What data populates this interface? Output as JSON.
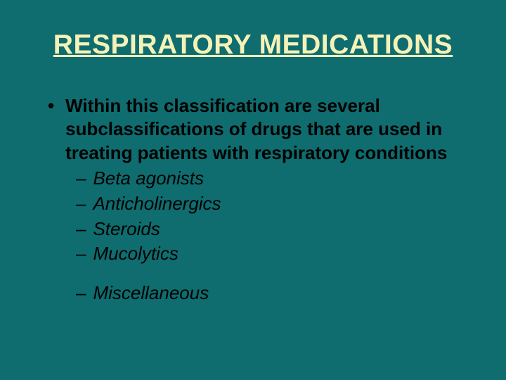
{
  "colors": {
    "background": "#0f6c6f",
    "title": "#f5f2b8",
    "body": "#000000"
  },
  "typography": {
    "title_fontsize": 39,
    "body_fontsize": 26,
    "title_weight": "bold",
    "body_weight": "bold",
    "sub_weight": "normal",
    "sub_style": "italic",
    "font_family": "Arial, Helvetica, sans-serif"
  },
  "title": "RESPIRATORY MEDICATIONS",
  "main_text": "Within this classification are several subclassifications of drugs that are used in treating patients with respiratory conditions",
  "sub_items": [
    "Beta agonists",
    "Anticholinergics",
    "Steroids",
    "Mucolytics",
    "Miscellaneous"
  ],
  "bullet_char": "•",
  "dash_char": "–"
}
